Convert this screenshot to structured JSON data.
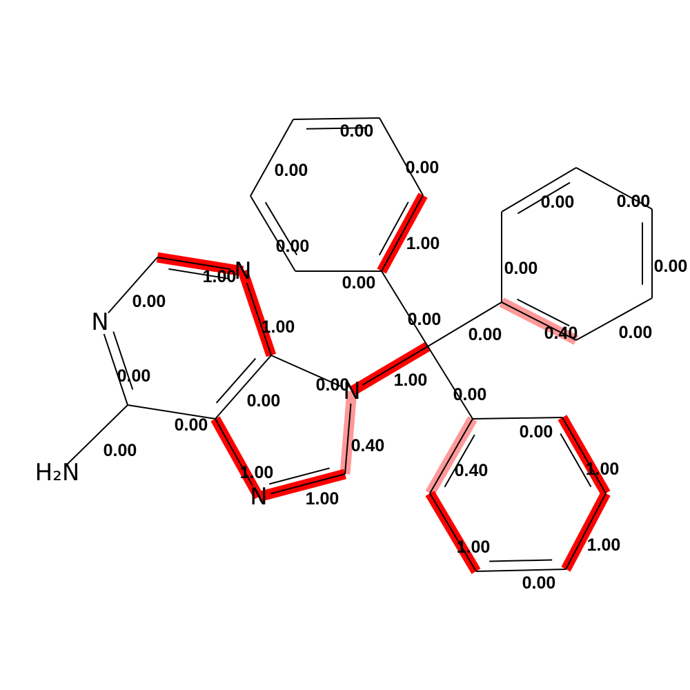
{
  "atoms": [
    {
      "label": "N"
    },
    {
      "label": "N"
    },
    {
      "label": "N"
    },
    {
      "label": "N"
    },
    {
      "label": "H₂N"
    }
  ],
  "bonds": [
    {
      "value": 0,
      "label": "0.00"
    },
    {
      "value": 0,
      "label": "0.00"
    },
    {
      "value": 1,
      "label": "1.00"
    },
    {
      "value": 0,
      "label": "0.00"
    },
    {
      "value": 0,
      "label": "0.00"
    },
    {
      "value": 0,
      "label": "0.00"
    },
    {
      "value": 0,
      "label": "0.00"
    },
    {
      "value": 0,
      "label": "0.00"
    },
    {
      "value": 0.4,
      "label": "0.40"
    },
    {
      "value": 0,
      "label": "0.00"
    },
    {
      "value": 0,
      "label": "0.00"
    },
    {
      "value": 0,
      "label": "0.00"
    },
    {
      "value": 0,
      "label": "0.00"
    },
    {
      "value": 0,
      "label": "0.00"
    },
    {
      "value": 0,
      "label": "0.00"
    },
    {
      "value": 0,
      "label": "0.00"
    },
    {
      "value": 1,
      "label": "1.00"
    },
    {
      "value": 1,
      "label": "1.00"
    },
    {
      "value": 0,
      "label": "0.00"
    },
    {
      "value": 1,
      "label": "1.00"
    },
    {
      "value": 0.4,
      "label": "0.40"
    },
    {
      "value": 1,
      "label": "1.00"
    },
    {
      "value": 0.4,
      "label": "0.40"
    },
    {
      "value": 1,
      "label": "1.00"
    },
    {
      "value": 1,
      "label": "1.00"
    },
    {
      "value": 0,
      "label": "0.00"
    },
    {
      "value": 0,
      "label": "0.00"
    },
    {
      "value": 1,
      "label": "1.00"
    },
    {
      "value": 1,
      "label": "1.00"
    },
    {
      "value": 0,
      "label": "0.00"
    },
    {
      "value": 0,
      "label": "0.00"
    },
    {
      "value": 0,
      "label": "0.00"
    },
    {
      "value": 0,
      "label": "0.00"
    }
  ]
}
